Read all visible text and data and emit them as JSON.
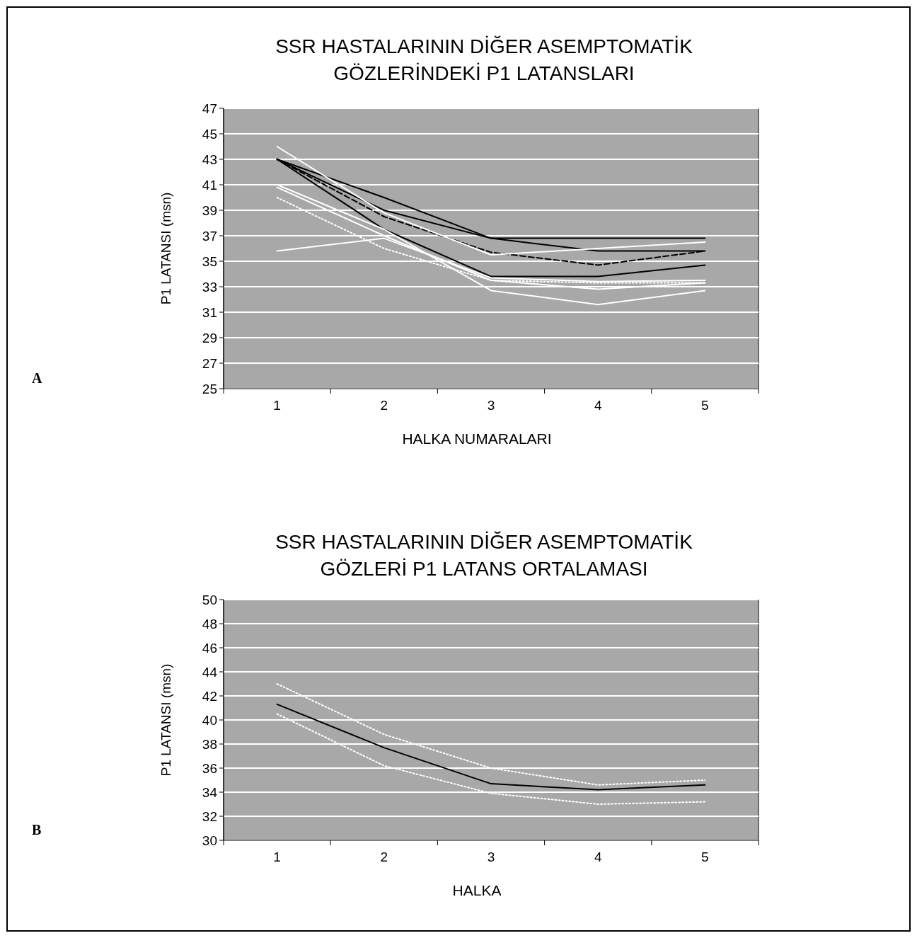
{
  "chart_data": [
    {
      "type": "line",
      "title": "SSR HASTALARININ DİĞER ASEMPTOMATİK\nGÖZLERİNDEKİ P1 LATANSLARI",
      "xlabel": "HALKA NUMARALARI",
      "ylabel": "P1 LATANSI (msn)",
      "categories": [
        "1",
        "2",
        "3",
        "4",
        "5"
      ],
      "ylim": [
        25,
        47
      ],
      "yticks": [
        25,
        27,
        29,
        31,
        33,
        35,
        37,
        39,
        41,
        43,
        45,
        47
      ],
      "grid": "y",
      "annotations": [
        "A"
      ],
      "series": [
        {
          "color": "#000000",
          "values": [
            43,
            40,
            36.8,
            36.8,
            36.8
          ],
          "line_style": "solid"
        },
        {
          "color": "#000000",
          "values": [
            43,
            39,
            36.8,
            35.8,
            35.8
          ],
          "line_style": "solid"
        },
        {
          "color": "#000000",
          "values": [
            43,
            37.5,
            33.8,
            33.8,
            34.7
          ],
          "line_style": "solid"
        },
        {
          "color": "#000000",
          "values": [
            43,
            38.5,
            35.7,
            34.7,
            35.8
          ],
          "line_style": "dashed"
        },
        {
          "color": "#ffffff",
          "values": [
            44,
            38.8,
            35.5,
            36,
            36.5
          ],
          "line_style": "solid"
        },
        {
          "color": "#ffffff",
          "values": [
            40.8,
            37,
            33.5,
            32.8,
            33.3
          ],
          "line_style": "solid"
        },
        {
          "color": "#ffffff",
          "values": [
            40,
            36,
            33.5,
            33.3,
            33.3
          ],
          "line_style": "dotted"
        },
        {
          "color": "#ffffff",
          "values": [
            35.8,
            36.8,
            33.7,
            33.4,
            33.5
          ],
          "line_style": "solid"
        },
        {
          "color": "#ffffff",
          "values": [
            41,
            37.5,
            32.7,
            31.6,
            32.7
          ],
          "line_style": "solid"
        }
      ]
    },
    {
      "type": "line",
      "title": "SSR HASTALARININ DİĞER ASEMPTOMATİK\nGÖZLERİ P1 LATANS ORTALAMASI",
      "xlabel": "HALKA",
      "ylabel": "P1 LATANSI (msn)",
      "categories": [
        "1",
        "2",
        "3",
        "4",
        "5"
      ],
      "ylim": [
        30,
        50
      ],
      "yticks": [
        30,
        32,
        34,
        36,
        38,
        40,
        42,
        44,
        46,
        48,
        50
      ],
      "grid": "y",
      "annotations": [
        "B"
      ],
      "series": [
        {
          "color": "#000000",
          "values": [
            41.3,
            37.7,
            34.7,
            34.2,
            34.6
          ],
          "line_style": "solid"
        },
        {
          "color": "#ffffff",
          "values": [
            43,
            38.8,
            36,
            34.6,
            35
          ],
          "line_style": "dotted"
        },
        {
          "color": "#ffffff",
          "values": [
            40.5,
            36.2,
            33.9,
            33,
            33.2
          ],
          "line_style": "dotted"
        }
      ]
    }
  ]
}
